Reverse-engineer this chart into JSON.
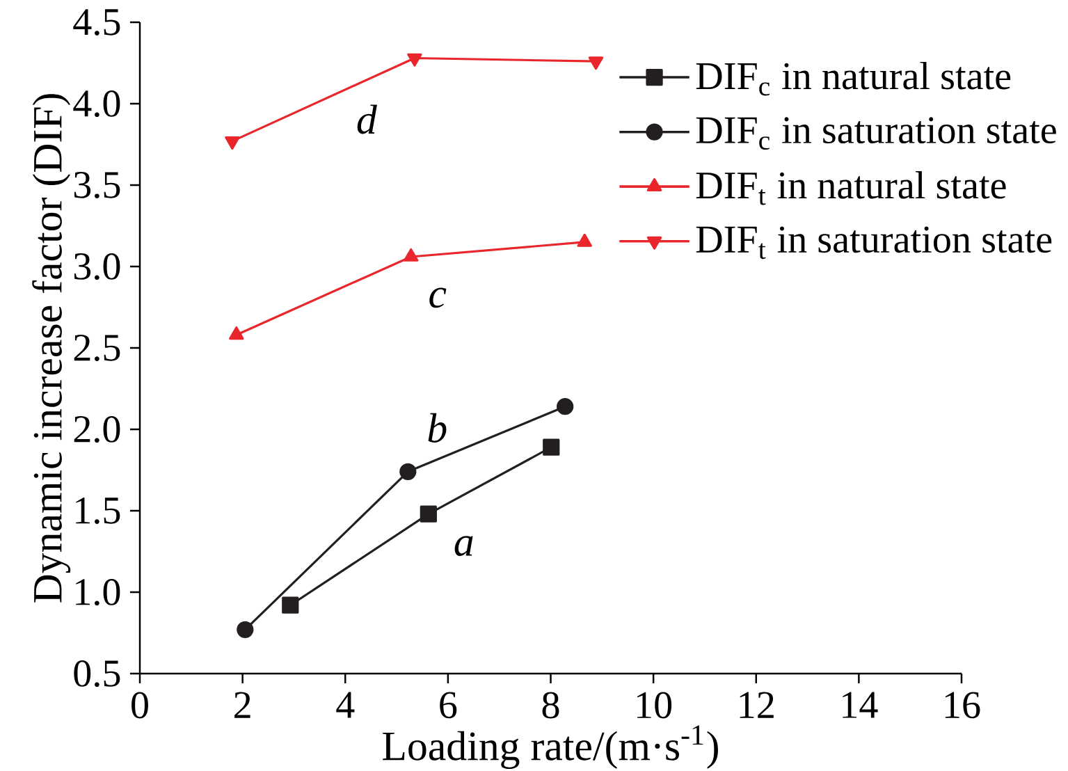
{
  "chart_data": {
    "type": "line",
    "xlabel": "Loading rate/(m·s$^{-1}$)",
    "ylabel": "Dynamic increase factor (DIF)",
    "xlim": [
      0,
      16
    ],
    "xticks": [
      0,
      2,
      4,
      6,
      8,
      10,
      12,
      14,
      16
    ],
    "ylim": [
      0.5,
      4.5
    ],
    "yticks": [
      0.5,
      {
        "value": 1,
        "label": "1.0"
      },
      1.5,
      {
        "value": 2,
        "label": "2.0"
      },
      2.5,
      {
        "value": 3,
        "label": "3.0"
      },
      3.5,
      {
        "value": 4,
        "label": "4.0"
      },
      4.5
    ],
    "legend": "top right",
    "line_style": "solid",
    "series": [
      {
        "name": "DIF$_{c}$ in natural state",
        "color": "#231f20",
        "marker": "square",
        "x": [
          2.93,
          5.62,
          8.01
        ],
        "values": [
          0.92,
          1.48,
          1.89
        ]
      },
      {
        "name": "DIF$_{c}$ in saturation state",
        "color": "#231f20",
        "marker": "circle",
        "x": [
          2.05,
          5.22,
          8.28
        ],
        "values": [
          0.77,
          1.74,
          2.14
        ]
      },
      {
        "name": "DIF$_{t}$ in natural state",
        "color": "#e8262b",
        "marker": "triangle",
        "x": [
          1.88,
          5.28,
          8.66
        ],
        "values": [
          2.58,
          3.06,
          3.15
        ]
      },
      {
        "name": "DIF$_{t}$ in saturation state",
        "color": "#e8262b",
        "marker": "triangle-down",
        "x": [
          1.8,
          5.35,
          8.88
        ],
        "values": [
          3.77,
          4.28,
          4.26
        ]
      }
    ],
    "annotations": [
      "*a*",
      "*b*",
      "*c*",
      "*d*"
    ]
  }
}
